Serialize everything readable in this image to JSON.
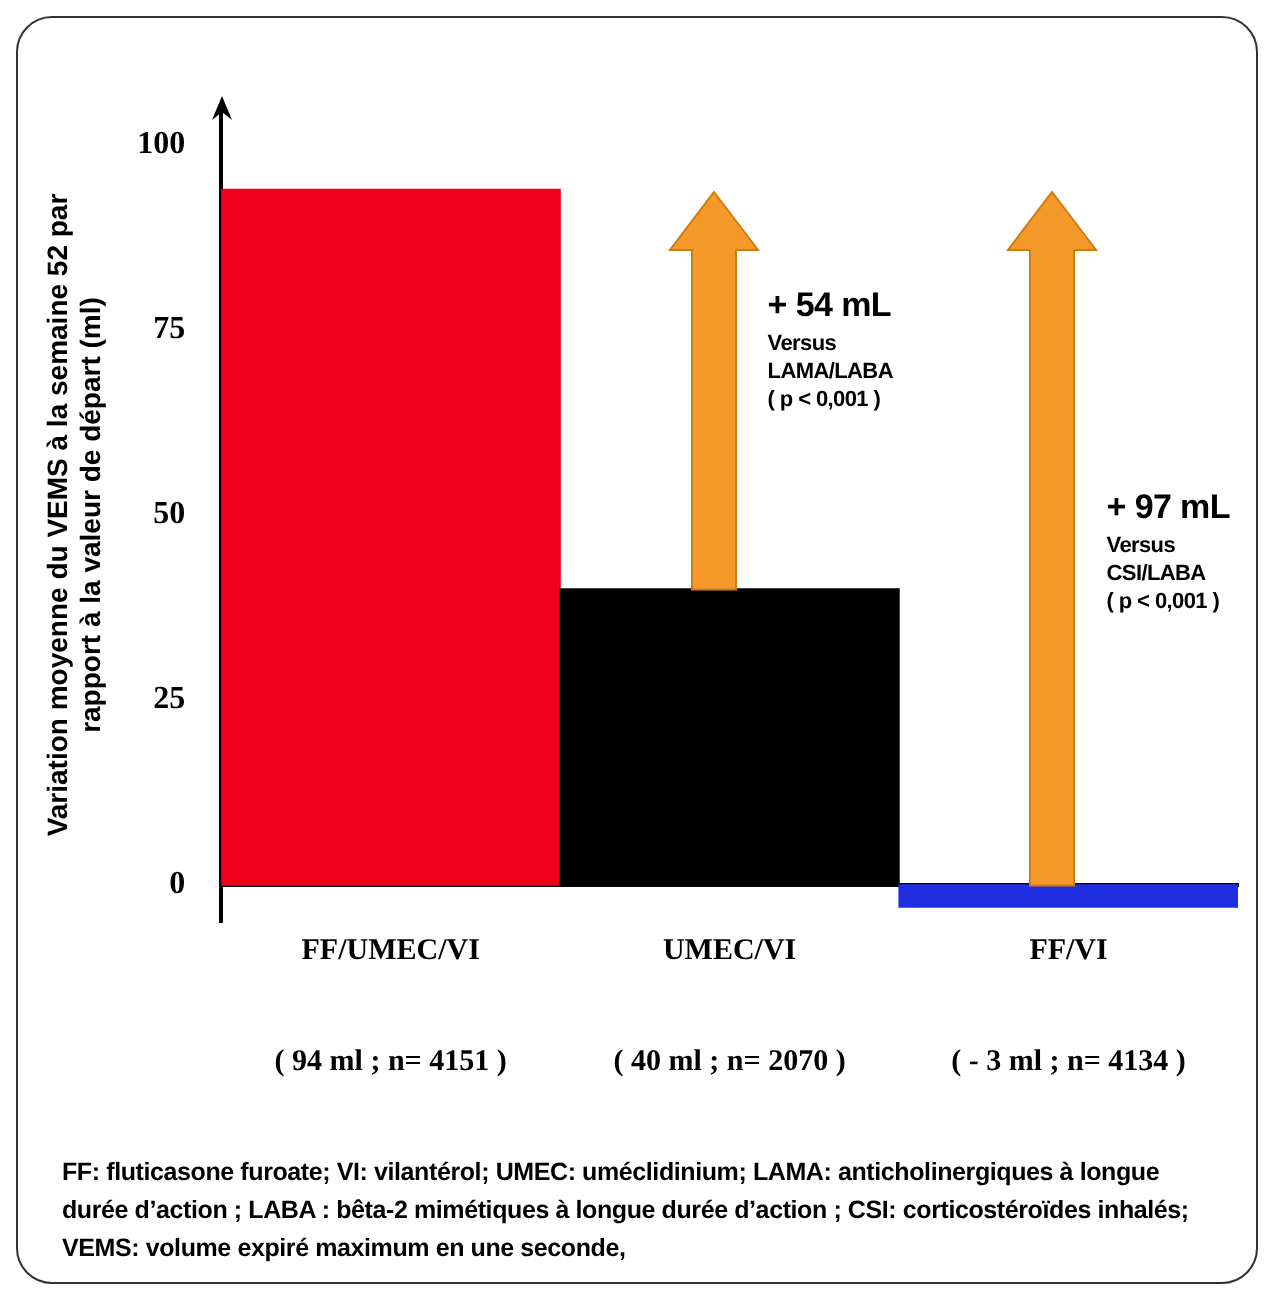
{
  "chart_data": {
    "type": "bar",
    "ylabel": "Variation moyenne du VEMS à la semaine 52 par\nrapport à la valeur de départ (ml)",
    "categories": [
      "FF/UMEC/VI",
      "UMEC/VI",
      "FF/VI"
    ],
    "values": [
      94,
      40,
      -3
    ],
    "colors": [
      "#f0001c",
      "#000000",
      "#1f2ee0"
    ],
    "ylim": [
      -5,
      105
    ],
    "yticks": [
      0,
      25,
      50,
      75,
      100
    ],
    "grid": false,
    "legend": false,
    "annotations": [
      "( 94 ml ; n= 4151 )",
      "( 40 ml ; n= 2070 )",
      "( - 3 ml ; n= 4134 )",
      "+ 54 mL\nVersus\nLAMA/LABA\n( p < 0,001 )",
      "+ 97 mL\nVersus\nCSI/LABA\n( p < 0,001 )",
      "FF: fluticasone furoate; VI: vilantérol; UMEC: uméclidinium; LAMA: anticholinergiques à longue durée d’action ; LABA : bêta-2 mimétiques à longue durée d’action ; CSI: corticostéroïdes inhalés; VEMS: volume expiré maximum en une seconde,"
    ]
  }
}
